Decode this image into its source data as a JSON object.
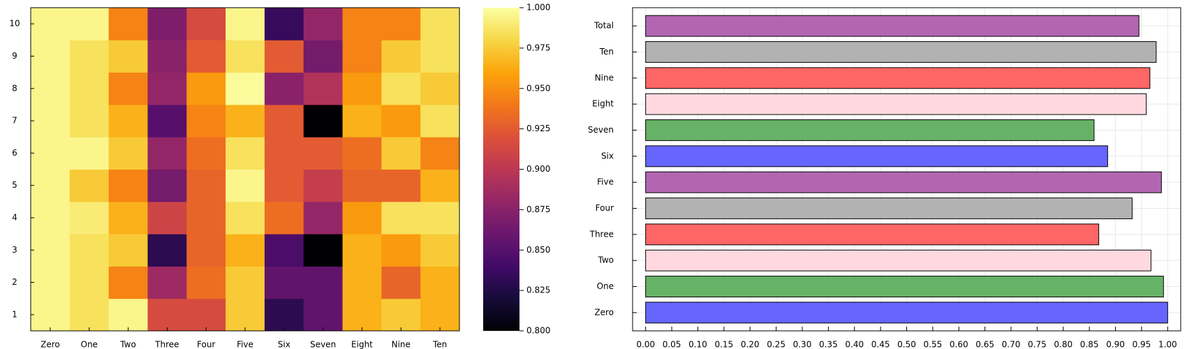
{
  "chart_data": [
    {
      "type": "heatmap",
      "title": "",
      "xlabel": "",
      "ylabel": "",
      "x_categories": [
        "Zero",
        "One",
        "Two",
        "Three",
        "Four",
        "Five",
        "Six",
        "Seven",
        "Eight",
        "Nine",
        "Ten"
      ],
      "y_categories": [
        "1",
        "2",
        "3",
        "4",
        "5",
        "6",
        "7",
        "8",
        "9",
        "10"
      ],
      "values": [
        [
          0.995,
          0.985,
          0.995,
          0.915,
          0.915,
          0.975,
          0.83,
          0.855,
          0.965,
          0.975,
          0.965
        ],
        [
          0.995,
          0.985,
          0.945,
          0.885,
          0.935,
          0.975,
          0.855,
          0.855,
          0.965,
          0.93,
          0.965
        ],
        [
          0.995,
          0.985,
          0.975,
          0.83,
          0.93,
          0.965,
          0.845,
          0.8,
          0.965,
          0.955,
          0.975
        ],
        [
          0.995,
          0.99,
          0.965,
          0.91,
          0.93,
          0.985,
          0.935,
          0.88,
          0.955,
          0.985,
          0.985
        ],
        [
          0.995,
          0.975,
          0.945,
          0.865,
          0.93,
          0.995,
          0.925,
          0.905,
          0.93,
          0.93,
          0.965
        ],
        [
          0.995,
          0.995,
          0.975,
          0.88,
          0.935,
          0.985,
          0.925,
          0.925,
          0.935,
          0.975,
          0.945
        ],
        [
          0.995,
          0.985,
          0.965,
          0.85,
          0.945,
          0.965,
          0.925,
          0.8,
          0.965,
          0.955,
          0.985
        ],
        [
          0.995,
          0.985,
          0.945,
          0.88,
          0.955,
          0.998,
          0.875,
          0.895,
          0.955,
          0.985,
          0.975
        ],
        [
          0.995,
          0.985,
          0.975,
          0.875,
          0.925,
          0.985,
          0.925,
          0.865,
          0.945,
          0.975,
          0.985
        ],
        [
          0.995,
          0.995,
          0.945,
          0.87,
          0.915,
          0.995,
          0.835,
          0.88,
          0.945,
          0.945,
          0.985
        ]
      ],
      "colorbar": {
        "min": 0.8,
        "max": 1.0,
        "ticks": [
          "0.800",
          "0.825",
          "0.850",
          "0.875",
          "0.900",
          "0.925",
          "0.950",
          "0.975",
          "1.000"
        ]
      },
      "grid": false
    },
    {
      "type": "bar",
      "orientation": "horizontal",
      "title": "",
      "xlabel": "",
      "ylabel": "",
      "categories": [
        "Zero",
        "One",
        "Two",
        "Three",
        "Four",
        "Five",
        "Six",
        "Seven",
        "Eight",
        "Nine",
        "Ten",
        "Total"
      ],
      "values": [
        1.0,
        0.992,
        0.968,
        0.868,
        0.932,
        0.988,
        0.885,
        0.859,
        0.959,
        0.966,
        0.978,
        0.945
      ],
      "colors": [
        "#6666ff",
        "#66b266",
        "#ffd9df",
        "#ff6666",
        "#b2b2b2",
        "#b266b2",
        "#6666ff",
        "#66b266",
        "#ffd9df",
        "#ff6666",
        "#b2b2b2",
        "#b266b2"
      ],
      "xlim": [
        -0.025,
        1.025
      ],
      "x_ticks": [
        "0.00",
        "0.05",
        "0.10",
        "0.15",
        "0.20",
        "0.25",
        "0.30",
        "0.35",
        "0.40",
        "0.45",
        "0.50",
        "0.55",
        "0.60",
        "0.65",
        "0.70",
        "0.75",
        "0.80",
        "0.85",
        "0.90",
        "0.95",
        "1.00"
      ],
      "grid": true
    }
  ]
}
